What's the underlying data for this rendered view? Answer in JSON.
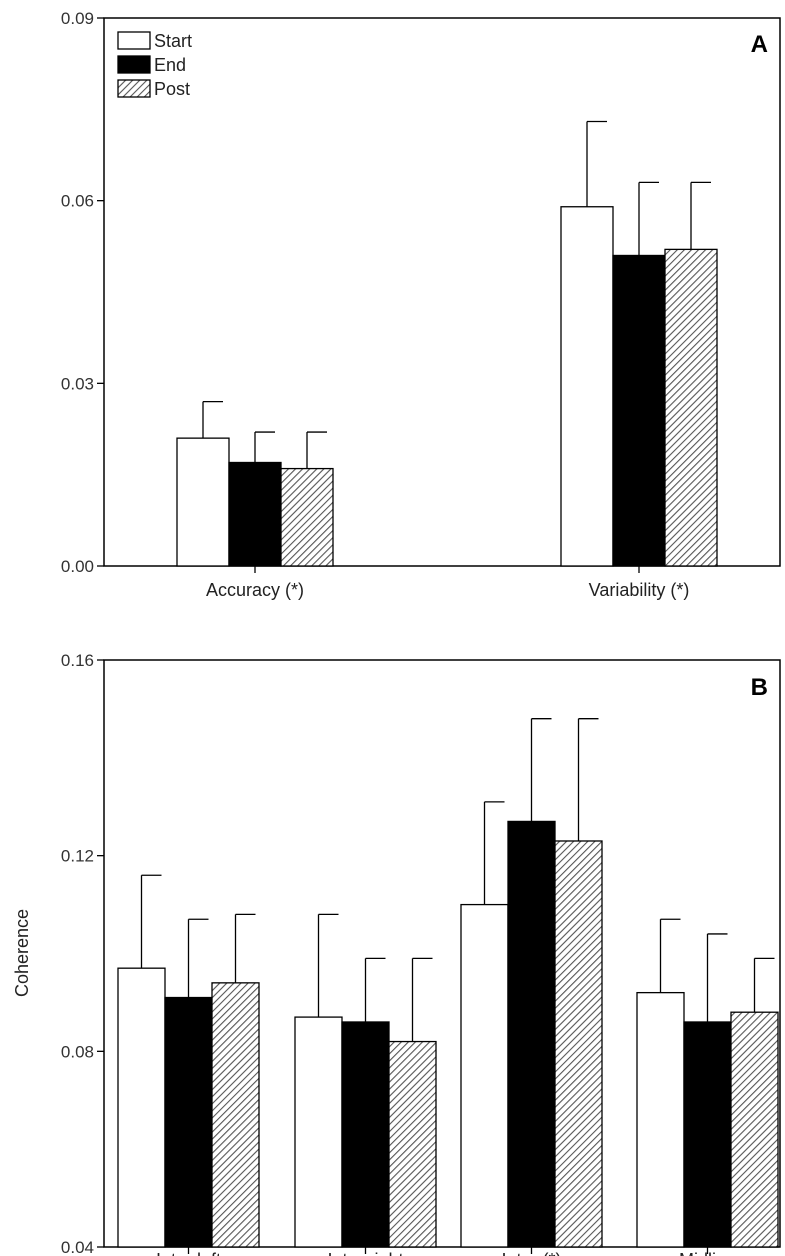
{
  "colors": {
    "start": "#ffffff",
    "end": "#000000",
    "post": "hatched-gray",
    "stroke": "#000000"
  },
  "chart_data": [
    {
      "type": "bar",
      "panel": "A",
      "ylabel": "",
      "ylim": [
        0,
        0.09
      ],
      "yticks": [
        "0.00",
        "0.03",
        "0.06",
        "0.09"
      ],
      "categories": [
        "Accuracy (*)",
        "Variability (*)"
      ],
      "legend": {
        "placement": "top-left",
        "entries": [
          "Start",
          "End",
          "Post"
        ]
      },
      "series": [
        {
          "name": "Start",
          "values": [
            0.021,
            0.059
          ],
          "errors": [
            0.006,
            0.014
          ]
        },
        {
          "name": "End",
          "values": [
            0.017,
            0.051
          ],
          "errors": [
            0.005,
            0.012
          ]
        },
        {
          "name": "Post",
          "values": [
            0.016,
            0.052
          ],
          "errors": [
            0.006,
            0.011
          ]
        }
      ]
    },
    {
      "type": "bar",
      "panel": "B",
      "ylabel": "Coherence",
      "ylim": [
        0.04,
        0.16
      ],
      "yticks": [
        "0.04",
        "0.08",
        "0.12",
        "0.16"
      ],
      "categories": [
        "Intra left",
        "Intra right",
        "Inter (*)",
        "Midline"
      ],
      "series": [
        {
          "name": "Start",
          "values": [
            0.097,
            0.087,
            0.11,
            0.092
          ],
          "errors": [
            0.019,
            0.021,
            0.021,
            0.015
          ]
        },
        {
          "name": "End",
          "values": [
            0.091,
            0.086,
            0.127,
            0.086
          ],
          "errors": [
            0.016,
            0.013,
            0.021,
            0.018
          ]
        },
        {
          "name": "Post",
          "values": [
            0.094,
            0.082,
            0.123,
            0.088
          ],
          "errors": [
            0.014,
            0.017,
            0.025,
            0.011
          ]
        }
      ]
    }
  ]
}
